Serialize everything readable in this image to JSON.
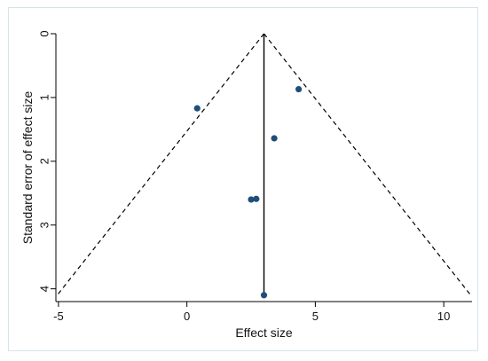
{
  "chart_data": {
    "type": "scatter",
    "title": "",
    "xlabel": "Effect size",
    "ylabel": "Standard error of effect size",
    "xlim": [
      -5.1,
      11.1
    ],
    "ylim": [
      0,
      4.2
    ],
    "y_reversed": true,
    "xticks": [
      -5,
      0,
      5,
      10
    ],
    "yticks": [
      0,
      1,
      2,
      3,
      4
    ],
    "grid": false,
    "legend": "none",
    "points": [
      {
        "x": 0.4,
        "y": 1.17
      },
      {
        "x": 4.35,
        "y": 0.87
      },
      {
        "x": 3.4,
        "y": 1.64
      },
      {
        "x": 2.5,
        "y": 2.6
      },
      {
        "x": 2.7,
        "y": 2.59
      },
      {
        "x": 3.0,
        "y": 4.1
      }
    ],
    "pooled_effect": 3.0,
    "funnel": {
      "apex": [
        3.0,
        0
      ],
      "left_base": [
        -5.05,
        4.1
      ],
      "right_base": [
        11.05,
        4.1
      ]
    },
    "point_color": "#1f4e79",
    "line_color": "#000000"
  }
}
